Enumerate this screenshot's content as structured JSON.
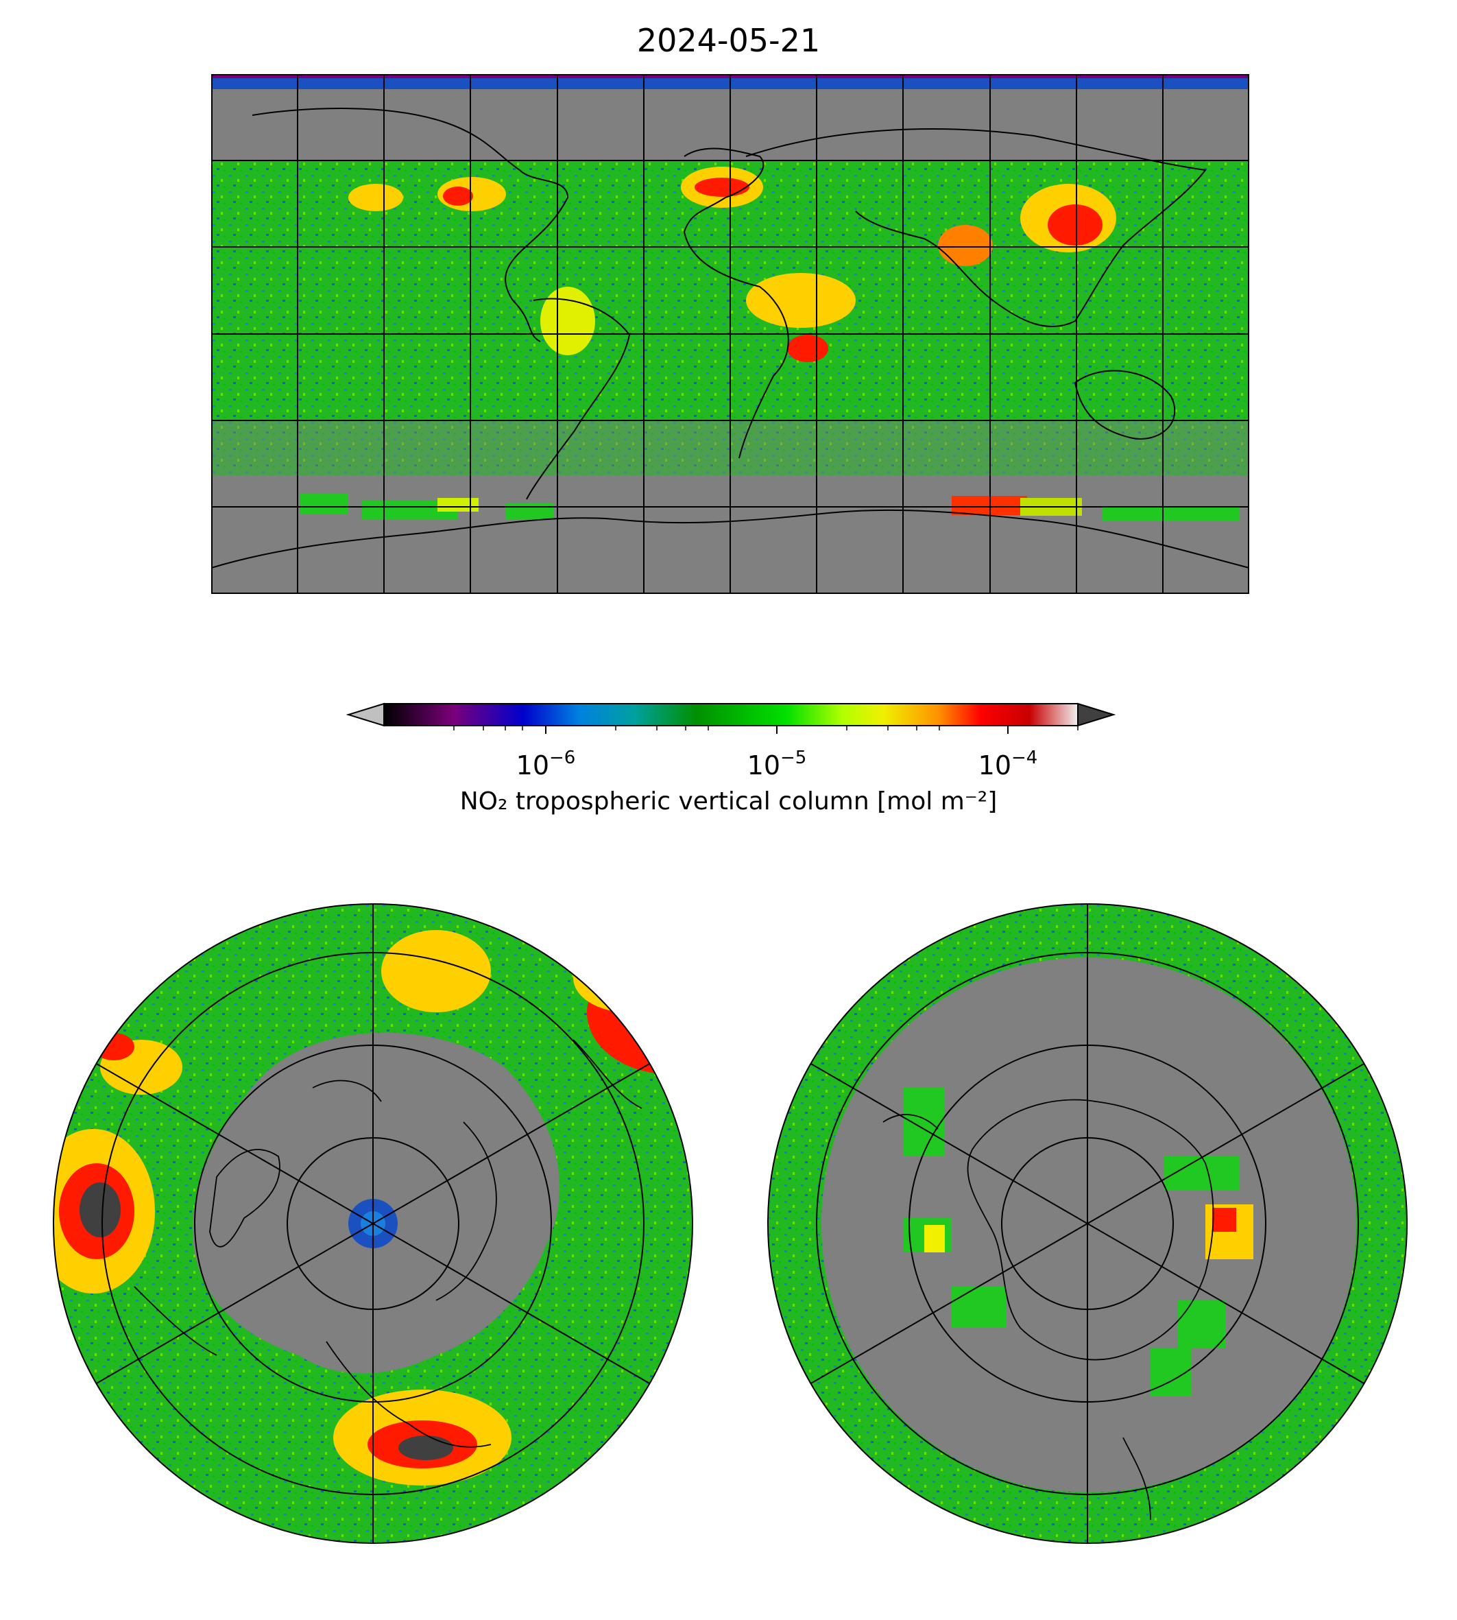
{
  "title": "2024-05-21",
  "colorbar": {
    "label": "NO₂ tropospheric vertical column [mol m⁻²]",
    "scale": "log",
    "range": [
      2e-07,
      0.0002
    ],
    "ticks": [
      {
        "base": "10",
        "exp": "−6",
        "value": 1e-06
      },
      {
        "base": "10",
        "exp": "−5",
        "value": 1e-05
      },
      {
        "base": "10",
        "exp": "−4",
        "value": 0.0001
      }
    ],
    "colormap": [
      "#000000",
      "#7a007a",
      "#0000cc",
      "#0080e0",
      "#00a0a0",
      "#009000",
      "#00e000",
      "#b0ff00",
      "#f0f000",
      "#ff9000",
      "#ff0000",
      "#c80000",
      "#f0f0f0"
    ],
    "under_color": "#c0c0c0",
    "over_color": "#404040",
    "no_data_color": "#808080"
  },
  "maps": [
    {
      "projection": "plate-carree",
      "extent": "global"
    },
    {
      "projection": "north-polar-stereographic"
    },
    {
      "projection": "south-polar-stereographic"
    }
  ]
}
